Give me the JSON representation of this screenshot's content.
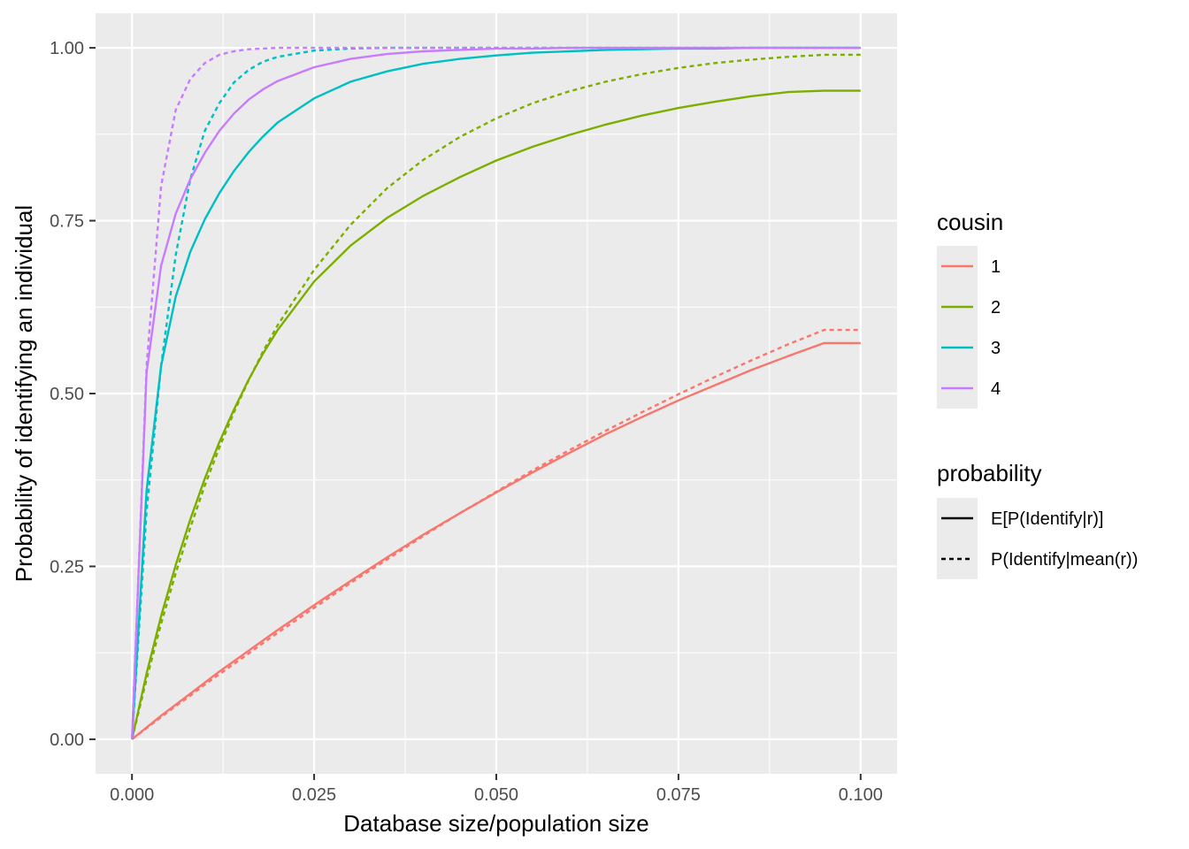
{
  "chart_data": {
    "type": "line",
    "title": "",
    "xlabel": "Database size/population size",
    "ylabel": "Probability of identifying an individual",
    "xlim": [
      -0.005,
      0.105
    ],
    "ylim": [
      -0.05,
      1.05
    ],
    "x_ticks": [
      0.0,
      0.025,
      0.05,
      0.075,
      0.1
    ],
    "x_tick_labels": [
      "0.000",
      "0.025",
      "0.050",
      "0.075",
      "0.100"
    ],
    "y_ticks": [
      0.0,
      0.25,
      0.5,
      0.75,
      1.0
    ],
    "y_tick_labels": [
      "0.00",
      "0.25",
      "0.50",
      "0.75",
      "1.00"
    ],
    "grid": true,
    "x": [
      0,
      0.002,
      0.004,
      0.006,
      0.008,
      0.01,
      0.012,
      0.014,
      0.016,
      0.018,
      0.02,
      0.025,
      0.03,
      0.035,
      0.04,
      0.045,
      0.05,
      0.055,
      0.06,
      0.065,
      0.07,
      0.075,
      0.08,
      0.085,
      0.09,
      0.095,
      0.1
    ],
    "series": [
      {
        "name": "cousin 1 – E[P(Identify|r)]",
        "cousin": "1",
        "probability": "E[P(Identify|r)]",
        "color": "#F8766D",
        "dash": "solid",
        "values": [
          0,
          0.017,
          0.034,
          0.05,
          0.066,
          0.082,
          0.098,
          0.113,
          0.128,
          0.143,
          0.158,
          0.194,
          0.229,
          0.263,
          0.296,
          0.327,
          0.357,
          0.386,
          0.414,
          0.441,
          0.466,
          0.49,
          0.512,
          0.534,
          0.554,
          0.573,
          0.573
        ]
      },
      {
        "name": "cousin 1 – P(Identify|mean(r))",
        "cousin": "1",
        "probability": "P(Identify|mean(r))",
        "color": "#F8766D",
        "dash": "dashed",
        "values": [
          0,
          0.016,
          0.032,
          0.048,
          0.063,
          0.079,
          0.094,
          0.109,
          0.124,
          0.139,
          0.154,
          0.19,
          0.226,
          0.26,
          0.294,
          0.327,
          0.358,
          0.389,
          0.418,
          0.446,
          0.473,
          0.499,
          0.524,
          0.548,
          0.571,
          0.592,
          0.592
        ]
      },
      {
        "name": "cousin 2 – E[P(Identify|r)]",
        "cousin": "2",
        "probability": "E[P(Identify|r)]",
        "color": "#7CAE00",
        "dash": "solid",
        "values": [
          0,
          0.095,
          0.178,
          0.252,
          0.318,
          0.377,
          0.43,
          0.477,
          0.52,
          0.558,
          0.592,
          0.662,
          0.714,
          0.754,
          0.786,
          0.813,
          0.837,
          0.857,
          0.874,
          0.889,
          0.902,
          0.913,
          0.922,
          0.93,
          0.936,
          0.938,
          0.938
        ]
      },
      {
        "name": "cousin 2 – P(Identify|mean(r))",
        "cousin": "2",
        "probability": "P(Identify|mean(r))",
        "color": "#7CAE00",
        "dash": "dashed",
        "values": [
          0,
          0.087,
          0.167,
          0.24,
          0.306,
          0.367,
          0.422,
          0.473,
          0.519,
          0.561,
          0.599,
          0.679,
          0.744,
          0.797,
          0.838,
          0.871,
          0.898,
          0.92,
          0.937,
          0.951,
          0.962,
          0.971,
          0.978,
          0.983,
          0.987,
          0.99,
          0.99
        ]
      },
      {
        "name": "cousin 3 – E[P(Identify|r)]",
        "cousin": "3",
        "probability": "E[P(Identify|r)]",
        "color": "#00BFC4",
        "dash": "solid",
        "values": [
          0,
          0.36,
          0.54,
          0.64,
          0.705,
          0.752,
          0.79,
          0.822,
          0.849,
          0.872,
          0.892,
          0.927,
          0.951,
          0.966,
          0.977,
          0.984,
          0.989,
          0.993,
          0.995,
          0.997,
          0.998,
          0.999,
          0.999,
          1.0,
          1.0,
          1.0,
          1.0
        ]
      },
      {
        "name": "cousin 3 – P(Identify|mean(r))",
        "cousin": "3",
        "probability": "P(Identify|mean(r))",
        "color": "#00BFC4",
        "dash": "dashed",
        "values": [
          0,
          0.33,
          0.54,
          0.7,
          0.81,
          0.88,
          0.92,
          0.95,
          0.968,
          0.98,
          0.987,
          0.996,
          0.999,
          1.0,
          1.0,
          1.0,
          1.0,
          1.0,
          1.0,
          1.0,
          1.0,
          1.0,
          1.0,
          1.0,
          1.0,
          1.0,
          1.0
        ]
      },
      {
        "name": "cousin 4 – E[P(Identify|r)]",
        "cousin": "4",
        "probability": "E[P(Identify|r)]",
        "color": "#C77CFF",
        "dash": "solid",
        "values": [
          0,
          0.53,
          0.685,
          0.76,
          0.81,
          0.848,
          0.88,
          0.905,
          0.925,
          0.94,
          0.952,
          0.972,
          0.984,
          0.991,
          0.995,
          0.997,
          0.999,
          0.999,
          1.0,
          1.0,
          1.0,
          1.0,
          1.0,
          1.0,
          1.0,
          1.0,
          1.0
        ]
      },
      {
        "name": "cousin 4 – P(Identify|mean(r))",
        "cousin": "4",
        "probability": "P(Identify|mean(r))",
        "color": "#C77CFF",
        "dash": "dashed",
        "values": [
          0,
          0.54,
          0.8,
          0.91,
          0.955,
          0.978,
          0.99,
          0.995,
          0.998,
          0.999,
          1.0,
          1.0,
          1.0,
          1.0,
          1.0,
          1.0,
          1.0,
          1.0,
          1.0,
          1.0,
          1.0,
          1.0,
          1.0,
          1.0,
          1.0,
          1.0,
          1.0
        ]
      }
    ],
    "legend": {
      "position": "right",
      "cousin": {
        "title": "cousin",
        "entries": [
          {
            "label": "1",
            "color": "#F8766D"
          },
          {
            "label": "2",
            "color": "#7CAE00"
          },
          {
            "label": "3",
            "color": "#00BFC4"
          },
          {
            "label": "4",
            "color": "#C77CFF"
          }
        ]
      },
      "probability": {
        "title": "probability",
        "entries": [
          {
            "label": "E[P(Identify|r)]",
            "dash": "solid"
          },
          {
            "label": "P(Identify|mean(r))",
            "dash": "dashed"
          }
        ]
      }
    },
    "panel_background": "#EBEBEB",
    "grid_color": "#FFFFFF"
  }
}
